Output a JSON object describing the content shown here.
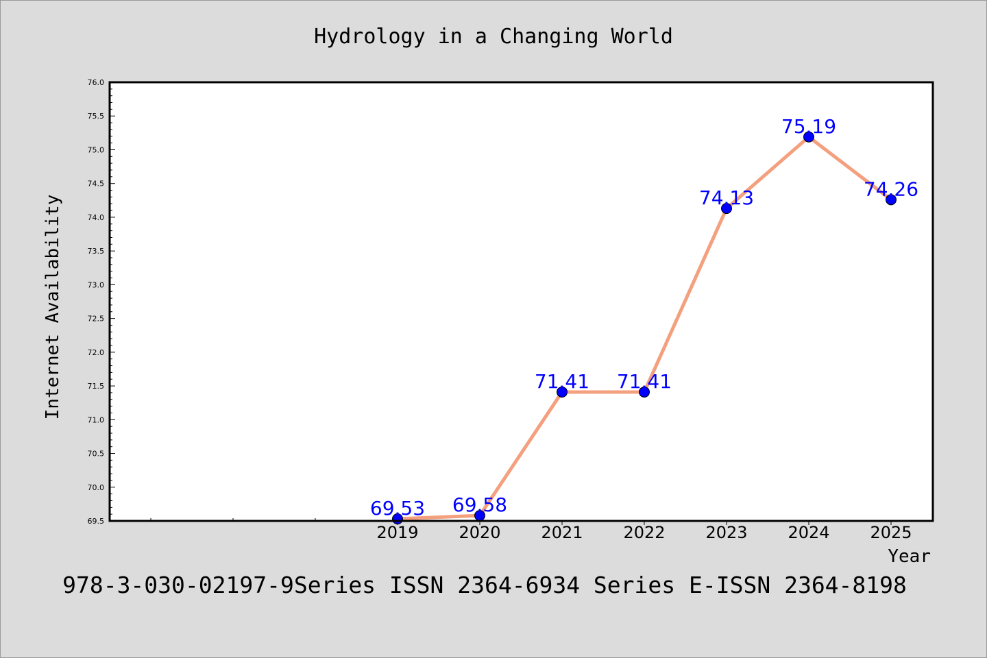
{
  "chart_data": {
    "type": "line",
    "title": "Hydrology in a Changing World",
    "xlabel": "Year",
    "ylabel": "Internet Availability",
    "footer": "978-3-030-02197-9Series ISSN 2364-6934 Series E-ISSN 2364-8198",
    "categories": [
      "2019",
      "2020",
      "2021",
      "2022",
      "2023",
      "2024",
      "2025"
    ],
    "values": [
      69.53,
      69.58,
      71.41,
      71.41,
      74.13,
      75.19,
      74.26
    ],
    "data_labels": [
      "69.53",
      "69.58",
      "71.41",
      "71.41",
      "74.13",
      "75.19",
      "74.26"
    ],
    "ylim": [
      69.5,
      76.0
    ],
    "yticks": [
      "69.5",
      "70.0",
      "70.5",
      "71.0",
      "71.5",
      "72.0",
      "72.5",
      "73.0",
      "73.5",
      "74.0",
      "74.5",
      "75.0",
      "75.5",
      "76.0"
    ],
    "grid": false,
    "legend": "none",
    "colors": {
      "line": "#f4a07e",
      "marker": "#0000ff",
      "label": "#0000ff",
      "background": "#dcdcdc",
      "plot_background": "#ffffff"
    }
  }
}
